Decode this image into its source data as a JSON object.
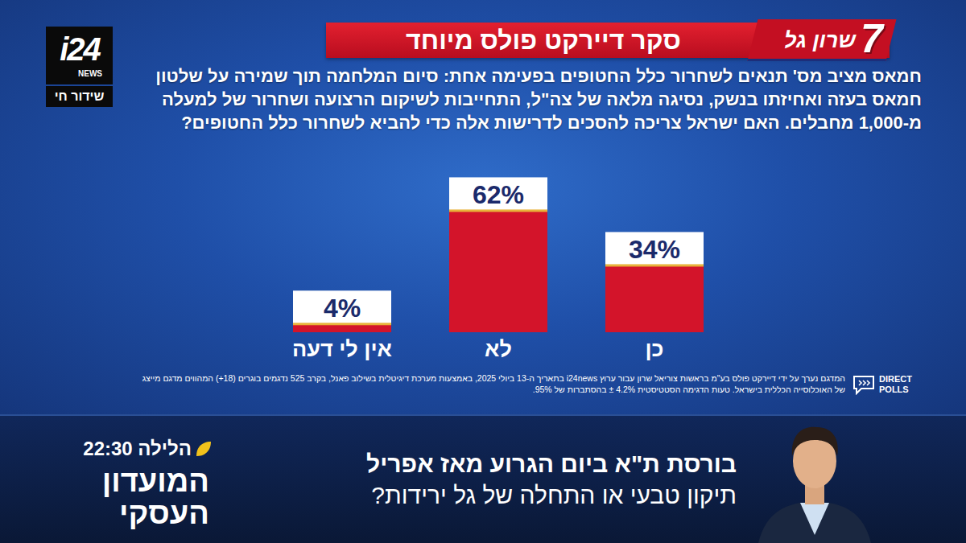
{
  "chart_data": {
    "type": "bar",
    "title": "סקר דיירקט פולס מיוחד",
    "subtitle": "חמאס מציב מס' תנאים לשחרור כלל החטופים בפעימה אחת: סיום המלחמה תוך שמירה על שלטון חמאס בעזה ואחיזתו בנשק, נסיגה מלאה של צה\"ל, התחייבות לשיקום הרצועה ושחרור של למעלה מ-1,000 מחבלים. האם ישראל צריכה להסכים לדרישות אלה כדי להביא לשחרור כלל החטופים?",
    "categories": [
      "כן",
      "לא",
      "אין לי דעה"
    ],
    "values": [
      34,
      62,
      4
    ],
    "value_labels": [
      "34%",
      "62%",
      "4%"
    ],
    "color": "#d3142a",
    "ylim": [
      0,
      70
    ],
    "data_labels": true,
    "tick_labels": "x",
    "grid": false
  },
  "page": {
    "logo": {
      "brand": "i24",
      "sub": "NEWS",
      "live": "שידור חי"
    },
    "host_logo": {
      "number": "7",
      "name": "שרון גל"
    },
    "footnote": "המדגם נערך על ידי דיירקט פולס בע\"מ בראשות צוריאל שרון עבור ערוץ i24news בתאריך ה-13 ביולי 2025, באמצעות מערכת דיגיטלית בשילוב פאנל, בקרב 525 נדגמים בוגרים (18+) המהווים מדגם מייצג של האוכלוסייה הכללית בישראל. טעות הדגימה הסטטיסטית 4.2% ± בהסתברות של 95%.",
    "pollster": {
      "line1": "DIRECT",
      "line2": "POLLS"
    },
    "ticker": {
      "headline": "בורסת ת\"א ביום הגרוע מאז אפריל",
      "subline": "תיקון טבעי או התחלה של גל ירידות?",
      "show_time": "הלילה 22:30",
      "show_name": "המועדון העסקי"
    }
  }
}
